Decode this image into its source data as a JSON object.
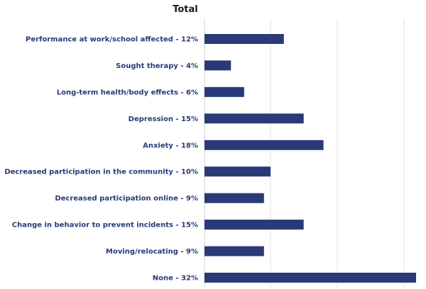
{
  "chart_data": {
    "type": "bar",
    "orientation": "horizontal",
    "title": "Total",
    "xlabel": "",
    "ylabel": "",
    "categories": [
      "Performance at work/school affected - 12%",
      "Sought therapy - 4%",
      "Long-term health/body effects - 6%",
      "Depression - 15%",
      "Anxiety - 18%",
      "Decreased participation in the community - 10%",
      "Decreased participation online - 9%",
      "Change in behavior to prevent incidents - 15%",
      "Moving/relocating - 9%",
      "None - 32%"
    ],
    "values": [
      12,
      4,
      6,
      15,
      18,
      10,
      9,
      15,
      9,
      32
    ],
    "xlim": [
      0,
      32
    ],
    "grid": true,
    "legend": "none",
    "bar_color": "#2a3a78"
  }
}
